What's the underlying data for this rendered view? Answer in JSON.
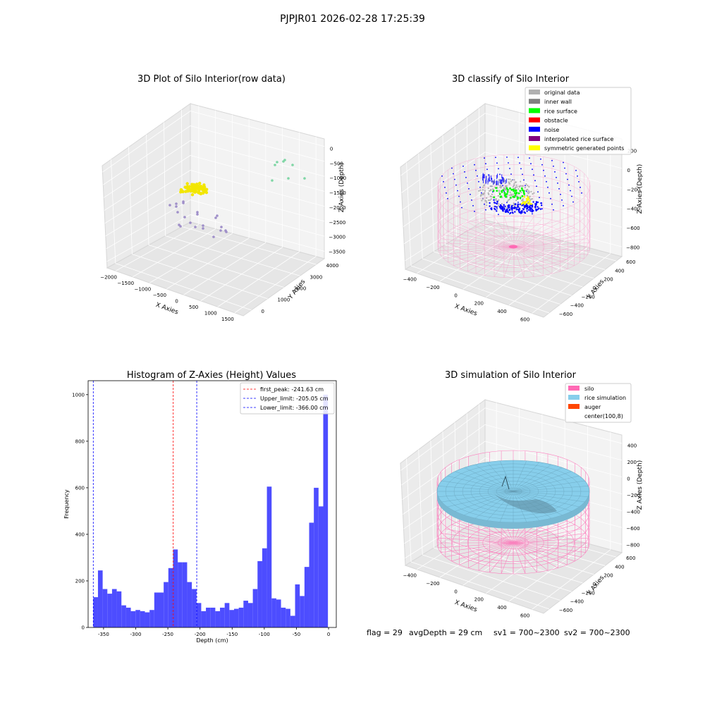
{
  "figure": {
    "suptitle": "PJPJR01 2026-02-28 17:25:39",
    "footer": {
      "flag": "flag = 29",
      "avg_depth": "avgDepth = 29 cm",
      "sv1": "sv1 = 700~2300",
      "sv2": "sv2 = 700~2300"
    }
  },
  "colors": {
    "raw_yellow": "#f2e600",
    "raw_green": "#7fd6a5",
    "raw_purple": "#9f8fc9",
    "legend_original": "#b0b0b0",
    "legend_inner_wall": "#808080",
    "legend_rice_surface": "#00ff00",
    "legend_obstacle": "#ff0000",
    "legend_noise": "#0000ff",
    "legend_interpolated": "#800080",
    "legend_symmetric": "#ffff00",
    "silo": "#ff69b4",
    "rice_simulation": "#87ceeb",
    "auger": "#ff4500",
    "hist_bar": "#4d4dff",
    "first_peak_line": "#ff0000",
    "limit_line": "#0000ff"
  },
  "chart_data": [
    {
      "type": "scatter",
      "title": "3D Plot of Silo Interior(row data)",
      "xlabel": "X Axies",
      "ylabel": "Y Axies",
      "zlabel": "Z Axies (Depth)",
      "x_ticks": [
        "−2000",
        "−1500",
        "−1000",
        "−500",
        "0",
        "500",
        "1000",
        "1500"
      ],
      "y_ticks": [
        "0",
        "1000",
        "2000",
        "3000",
        "4000"
      ],
      "z_ticks": [
        "0",
        "−500",
        "−1000",
        "−1500",
        "−2000",
        "−2500",
        "−3000",
        "−3500"
      ],
      "clusters": [
        {
          "color": "yellow",
          "description": "dense cluster",
          "x": -900,
          "y": 1500,
          "z": -1800
        },
        {
          "color": "green",
          "points": 8
        },
        {
          "color": "purple",
          "points": 22
        }
      ]
    },
    {
      "type": "scatter",
      "title": "3D classify of Silo Interior",
      "xlabel": "X Axies",
      "ylabel": "Y Axies",
      "zlabel": "Z Axies (Depth)",
      "x_ticks": [
        "−400",
        "−200",
        "0",
        "200",
        "400",
        "600"
      ],
      "y_ticks": [
        "−600",
        "−400",
        "−200",
        "0",
        "200",
        "400",
        "600"
      ],
      "z_ticks": [
        "200",
        "0",
        "−200",
        "−400",
        "−600",
        "−800"
      ],
      "legend": [
        {
          "label": "original data",
          "color": "#b0b0b0"
        },
        {
          "label": "inner wall",
          "color": "#808080"
        },
        {
          "label": "rice surface",
          "color": "#00ff00"
        },
        {
          "label": "obstacle",
          "color": "#ff0000"
        },
        {
          "label": "noise",
          "color": "#0000ff"
        },
        {
          "label": "interpolated rice surface",
          "color": "#800080"
        },
        {
          "label": "symmetric generated points",
          "color": "#ffff00"
        }
      ]
    },
    {
      "type": "bar",
      "title": "Histogram of Z-Axies (Height) Values",
      "xlabel": "Depth (cm)",
      "ylabel": "Frequency",
      "xlim": [
        -374,
        12
      ],
      "ylim": [
        0,
        1060
      ],
      "x_ticks": [
        -350,
        -300,
        -250,
        -200,
        -150,
        -100,
        -50,
        0
      ],
      "y_ticks": [
        0,
        200,
        400,
        600,
        800,
        1000
      ],
      "bin_start": -366,
      "bin_width": 7.3,
      "values": [
        130,
        245,
        165,
        145,
        165,
        155,
        95,
        85,
        70,
        75,
        70,
        65,
        75,
        150,
        150,
        195,
        255,
        335,
        280,
        280,
        195,
        165,
        105,
        70,
        85,
        85,
        70,
        85,
        105,
        75,
        80,
        85,
        115,
        105,
        165,
        285,
        340,
        605,
        125,
        120,
        85,
        80,
        50,
        185,
        135,
        260,
        450,
        600,
        520,
        1000
      ],
      "lines": [
        {
          "name": "first_peak: -241.63 cm",
          "x": -241.63,
          "color": "#ff0000"
        },
        {
          "name": "Upper_limit: -205.05 cm",
          "x": -205.05,
          "color": "#0000ff"
        },
        {
          "name": "Lower_limit: -366.00 cm",
          "x": -366.0,
          "color": "#0000ff"
        }
      ]
    },
    {
      "type": "surface",
      "title": "3D simulation of Silo Interior",
      "xlabel": "X Axies",
      "ylabel": "Y Axies",
      "zlabel": "Z Axies (Depth)",
      "x_ticks": [
        "−400",
        "−200",
        "0",
        "200",
        "400",
        "600"
      ],
      "y_ticks": [
        "−600",
        "−400",
        "−200",
        "0",
        "200",
        "400",
        "600"
      ],
      "z_ticks": [
        "400",
        "200",
        "0",
        "−200",
        "−400",
        "−600",
        "−800"
      ],
      "legend": [
        {
          "label": "silo",
          "color": "#ff69b4"
        },
        {
          "label": "rice simulation",
          "color": "#87ceeb"
        },
        {
          "label": "auger",
          "color": "#ff4500"
        },
        {
          "label": "center(100,8)",
          "color": ""
        }
      ]
    }
  ]
}
